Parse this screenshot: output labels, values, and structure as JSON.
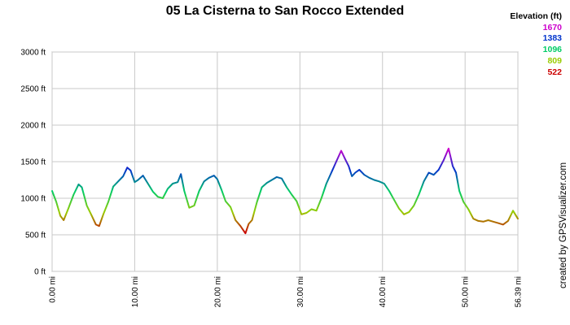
{
  "chart_data": {
    "type": "line",
    "title": "05 La Cisterna to San Rocco Extended",
    "legend": {
      "title": "Elevation (ft)",
      "entries": [
        {
          "label": "1670",
          "color": "#cc00cc"
        },
        {
          "label": "1383",
          "color": "#0033cc"
        },
        {
          "label": "1096",
          "color": "#00cc66"
        },
        {
          "label": "809",
          "color": "#99cc00"
        },
        {
          "label": "522",
          "color": "#cc0000"
        }
      ],
      "placement": "top-right"
    },
    "credit": "created by GPSVisualizer.com",
    "xlabel": "",
    "ylabel": "",
    "xlim": [
      0,
      56.39
    ],
    "ylim": [
      0,
      3000
    ],
    "grid": true,
    "x_ticks": [
      {
        "value": 0,
        "label": "0.00 mi"
      },
      {
        "value": 10,
        "label": "10.00 mi"
      },
      {
        "value": 20,
        "label": "20.00 mi"
      },
      {
        "value": 30,
        "label": "30.00 mi"
      },
      {
        "value": 40,
        "label": "40.00 mi"
      },
      {
        "value": 50,
        "label": "50.00 mi"
      },
      {
        "value": 56.39,
        "label": "56.39 mi"
      }
    ],
    "y_ticks": [
      {
        "value": 0,
        "label": "0 ft"
      },
      {
        "value": 500,
        "label": "500 ft"
      },
      {
        "value": 1000,
        "label": "1000 ft"
      },
      {
        "value": 1500,
        "label": "1500 ft"
      },
      {
        "value": 2000,
        "label": "2000 ft"
      },
      {
        "value": 2500,
        "label": "2500 ft"
      },
      {
        "value": 3000,
        "label": "3000 ft"
      }
    ],
    "series": [
      {
        "x": [
          0,
          0.5,
          1.0,
          1.4,
          2.0,
          2.6,
          3.2,
          3.6,
          4.2,
          4.8,
          5.3,
          5.7,
          6.2,
          6.8,
          7.4,
          8.0,
          8.6,
          9.1,
          9.5,
          10.0,
          10.4,
          11.0,
          11.6,
          12.2,
          12.8,
          13.4,
          14.0,
          14.6,
          15.2,
          15.6,
          16.0,
          16.6,
          17.2,
          17.8,
          18.4,
          19.0,
          19.6,
          20.0,
          20.5,
          21.0,
          21.6,
          22.2,
          22.8,
          23.4,
          23.8,
          24.2,
          24.8,
          25.4,
          26.0,
          26.6,
          27.2,
          27.8,
          28.4,
          29.0,
          29.6,
          30.2,
          30.8,
          31.4,
          32.0,
          32.6,
          33.2,
          33.8,
          34.4,
          35.0,
          35.5,
          35.9,
          36.3,
          36.7,
          37.2,
          37.8,
          38.4,
          39.0,
          39.6,
          40.2,
          40.8,
          41.4,
          42.0,
          42.6,
          43.2,
          43.8,
          44.4,
          45.0,
          45.6,
          46.2,
          46.8,
          47.4,
          48.0,
          48.5,
          48.9,
          49.3,
          49.8,
          50.4,
          51.0,
          51.6,
          52.2,
          52.8,
          53.4,
          54.0,
          54.6,
          55.2,
          55.8,
          56.39
        ],
        "y": [
          1100,
          950,
          760,
          700,
          870,
          1050,
          1190,
          1150,
          900,
          760,
          640,
          620,
          780,
          950,
          1160,
          1230,
          1300,
          1420,
          1380,
          1220,
          1250,
          1310,
          1200,
          1090,
          1020,
          1000,
          1130,
          1200,
          1220,
          1330,
          1100,
          870,
          900,
          1100,
          1230,
          1280,
          1310,
          1260,
          1120,
          960,
          880,
          700,
          620,
          520,
          650,
          700,
          950,
          1150,
          1210,
          1250,
          1290,
          1270,
          1150,
          1050,
          960,
          780,
          800,
          850,
          830,
          1000,
          1200,
          1350,
          1500,
          1650,
          1530,
          1440,
          1300,
          1350,
          1390,
          1320,
          1280,
          1250,
          1230,
          1200,
          1100,
          980,
          860,
          780,
          810,
          900,
          1050,
          1230,
          1350,
          1320,
          1390,
          1520,
          1680,
          1440,
          1350,
          1100,
          950,
          850,
          720,
          690,
          680,
          700,
          680,
          660,
          640,
          690,
          830,
          720
        ]
      }
    ]
  }
}
